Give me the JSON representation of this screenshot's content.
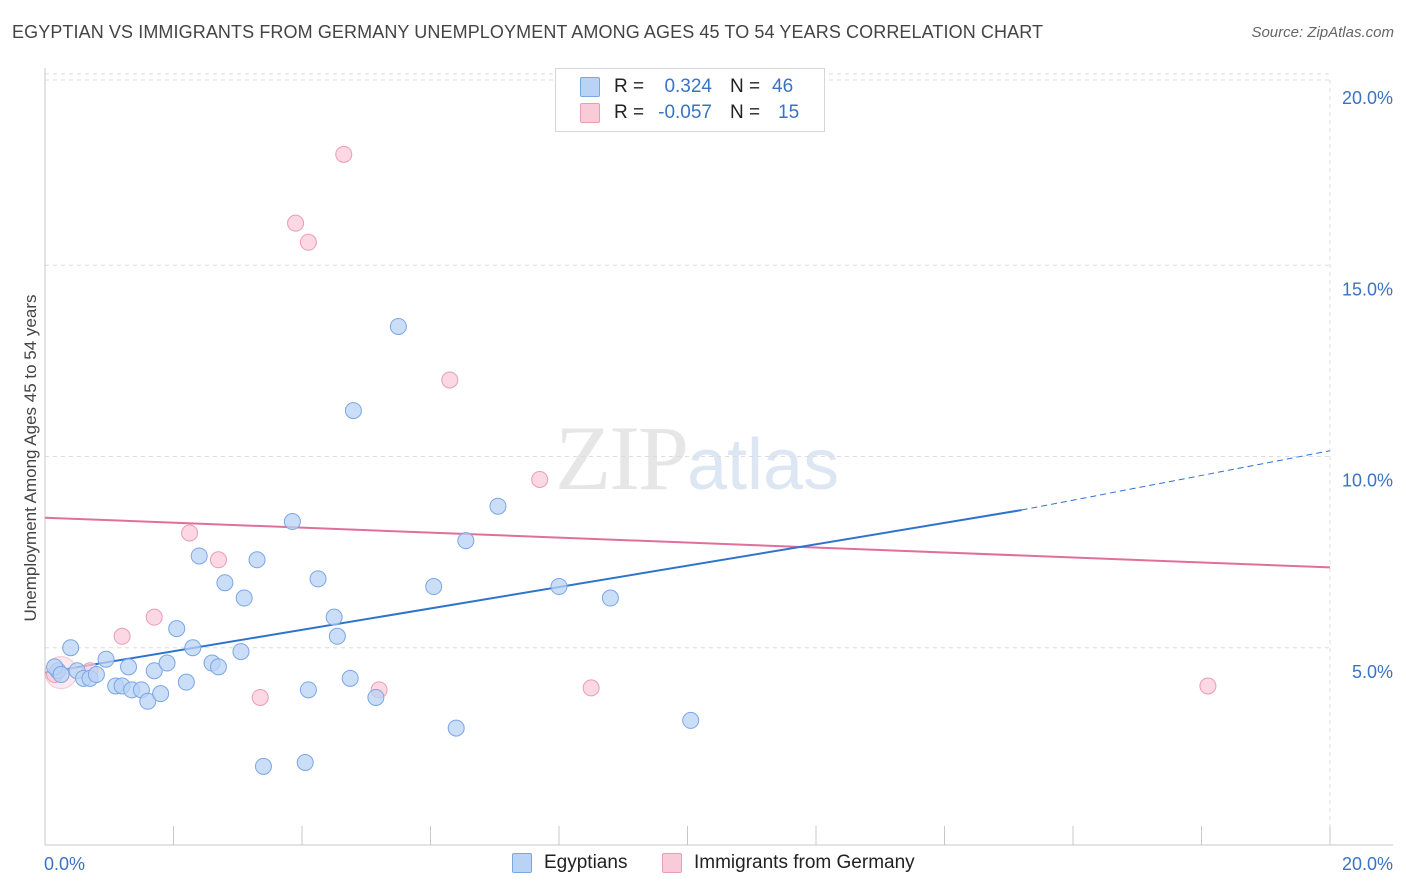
{
  "title": "EGYPTIAN VS IMMIGRANTS FROM GERMANY UNEMPLOYMENT AMONG AGES 45 TO 54 YEARS CORRELATION CHART",
  "source": "Source: ZipAtlas.com",
  "watermark": {
    "zip": "ZIP",
    "atlas": "atlas"
  },
  "legend": {
    "rows": [
      {
        "r_label": "R =",
        "r_value": "0.324",
        "n_label": "N =",
        "n_value": "46"
      },
      {
        "r_label": "R =",
        "r_value": "-0.057",
        "n_label": "N =",
        "n_value": "15"
      }
    ]
  },
  "bottom_legend": [
    "Egyptians",
    "Immigrants from Germany"
  ],
  "colors": {
    "blue_fill": "#b9d3f5",
    "blue_stroke": "#7aa6e6",
    "blue_line": "#2f72d0",
    "pink_fill": "#f9cbd9",
    "pink_stroke": "#ec9bb4",
    "pink_line": "#e0709a",
    "grid": "#dcdcdc",
    "tick": "#3a73c4"
  },
  "chart_data": {
    "type": "scatter",
    "title": "EGYPTIAN VS IMMIGRANTS FROM GERMANY UNEMPLOYMENT AMONG AGES 45 TO 54 YEARS CORRELATION CHART",
    "xlabel": "",
    "ylabel": "Unemployment Among Ages 45 to 54 years",
    "xlim": [
      0,
      20
    ],
    "ylim": [
      0,
      20
    ],
    "x_tick_labels": [
      "0.0%",
      "20.0%"
    ],
    "y_ticks": [
      5,
      10,
      15,
      20
    ],
    "y_tick_labels": [
      "5.0%",
      "10.0%",
      "15.0%",
      "20.0%"
    ],
    "grid": true,
    "series": [
      {
        "name": "Egyptians",
        "points": [
          [
            0.2,
            4.4
          ],
          [
            0.4,
            5.0
          ],
          [
            0.5,
            4.4
          ],
          [
            0.6,
            4.2
          ],
          [
            0.7,
            4.2
          ],
          [
            0.8,
            4.3
          ],
          [
            0.95,
            4.7
          ],
          [
            1.1,
            4.0
          ],
          [
            1.2,
            4.0
          ],
          [
            1.3,
            4.5
          ],
          [
            1.35,
            3.9
          ],
          [
            1.5,
            3.9
          ],
          [
            1.6,
            3.6
          ],
          [
            1.7,
            4.4
          ],
          [
            1.8,
            3.8
          ],
          [
            1.9,
            4.6
          ],
          [
            2.05,
            5.5
          ],
          [
            2.2,
            4.1
          ],
          [
            2.3,
            5.0
          ],
          [
            2.4,
            7.4
          ],
          [
            2.6,
            4.6
          ],
          [
            2.7,
            4.5
          ],
          [
            2.8,
            6.7
          ],
          [
            3.1,
            6.3
          ],
          [
            3.05,
            4.9
          ],
          [
            3.3,
            7.3
          ],
          [
            3.4,
            1.9
          ],
          [
            3.85,
            8.3
          ],
          [
            4.05,
            2.0
          ],
          [
            4.1,
            3.9
          ],
          [
            4.25,
            6.8
          ],
          [
            4.5,
            5.8
          ],
          [
            4.55,
            5.3
          ],
          [
            4.75,
            4.2
          ],
          [
            4.8,
            11.2
          ],
          [
            5.15,
            3.7
          ],
          [
            5.5,
            13.4
          ],
          [
            6.05,
            6.6
          ],
          [
            6.4,
            2.9
          ],
          [
            6.55,
            7.8
          ],
          [
            7.05,
            8.7
          ],
          [
            8.0,
            6.6
          ],
          [
            8.8,
            6.3
          ],
          [
            10.05,
            3.1
          ],
          [
            0.15,
            4.5
          ],
          [
            0.25,
            4.3
          ]
        ],
        "trend": {
          "x": [
            0,
            15.2
          ],
          "y": [
            4.35,
            8.6
          ],
          "dashed_extension": {
            "x": [
              15.2,
              20
            ],
            "y": [
              8.6,
              10.15
            ]
          }
        }
      },
      {
        "name": "Immigrants from Germany",
        "points": [
          [
            0.15,
            4.3
          ],
          [
            0.7,
            4.4
          ],
          [
            1.2,
            5.3
          ],
          [
            1.7,
            5.8
          ],
          [
            2.25,
            8.0
          ],
          [
            2.7,
            7.3
          ],
          [
            3.35,
            3.7
          ],
          [
            3.9,
            16.1
          ],
          [
            4.1,
            15.6
          ],
          [
            4.65,
            17.9
          ],
          [
            5.2,
            3.9
          ],
          [
            6.3,
            12.0
          ],
          [
            7.7,
            9.4
          ],
          [
            8.5,
            3.95
          ],
          [
            18.1,
            4.0
          ]
        ],
        "trend": {
          "x": [
            0,
            20
          ],
          "y": [
            8.4,
            7.1
          ]
        }
      }
    ]
  }
}
